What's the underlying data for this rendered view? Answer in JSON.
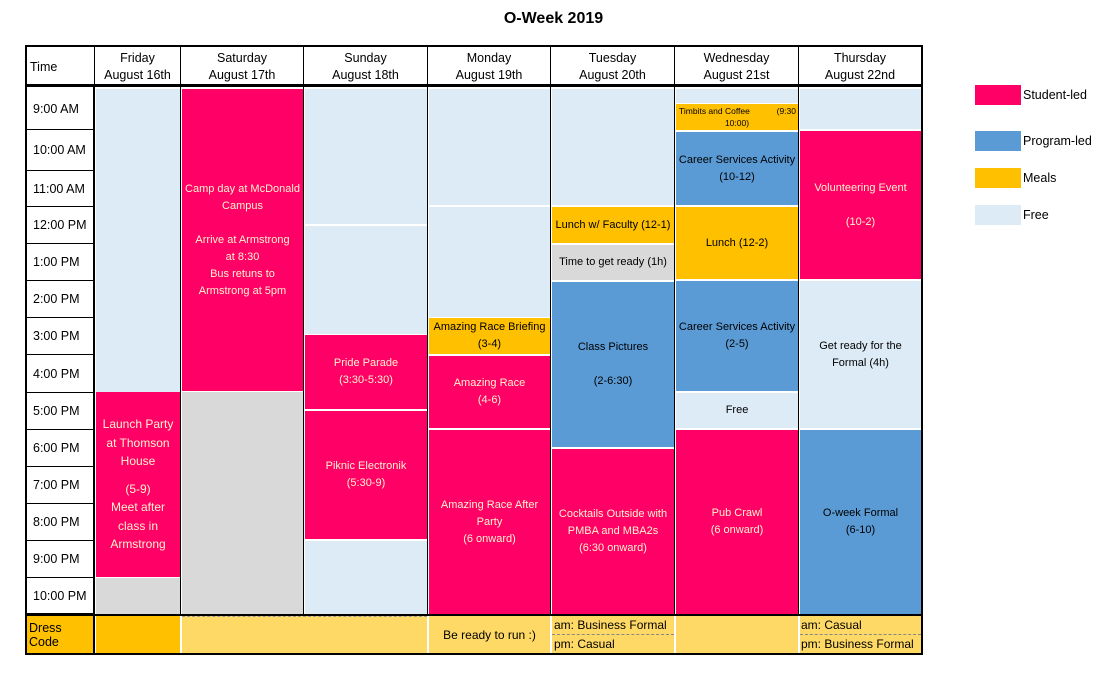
{
  "title": "O-Week 2019",
  "header": {
    "time": "Time",
    "days": [
      {
        "day": "Friday",
        "date": "August 16th"
      },
      {
        "day": "Saturday",
        "date": "August 17th"
      },
      {
        "day": "Sunday",
        "date": "August 18th"
      },
      {
        "day": "Monday",
        "date": "August 19th"
      },
      {
        "day": "Tuesday",
        "date": "August 20th"
      },
      {
        "day": "Wednesday",
        "date": "August 21st"
      },
      {
        "day": "Thursday",
        "date": "August 22nd"
      }
    ]
  },
  "times": [
    "9:00 AM",
    "10:00 AM",
    "11:00 AM",
    "12:00 PM",
    "1:00 PM",
    "2:00 PM",
    "3:00 PM",
    "4:00 PM",
    "5:00 PM",
    "6:00 PM",
    "7:00 PM",
    "8:00 PM",
    "9:00 PM",
    "10:00 PM"
  ],
  "events": {
    "sat_camp": [
      "Camp day at McDonald",
      "Campus",
      "",
      "Arrive at Armstrong",
      "at 8:30",
      "Bus retuns to",
      "Armstrong at 5pm"
    ],
    "fri_launch": [
      "Launch Party",
      "at Thomson",
      "House",
      "",
      "(5-9)",
      "Meet after",
      "class in",
      "Armstrong"
    ],
    "sun_pride": [
      "Pride Parade",
      "(3:30-5:30)"
    ],
    "sun_piknic": [
      "Piknic Electronik",
      "(5:30-9)"
    ],
    "mon_briefing": [
      "Amazing Race Briefing",
      "(3-4)"
    ],
    "mon_race": [
      "Amazing Race",
      "(4-6)"
    ],
    "mon_after": [
      "Amazing Race After",
      "Party",
      "(6 onward)"
    ],
    "tue_lunch": [
      "Lunch w/ Faculty (12-1)"
    ],
    "tue_ready": [
      "Time to get ready (1h)"
    ],
    "tue_class": [
      "Class Pictures",
      "",
      "(2-6:30)"
    ],
    "tue_cocktails": [
      "Cocktails Outside with",
      "PMBA and MBA2s",
      "(6:30 onward)"
    ],
    "wed_timbits": [
      "Timbits and Coffee",
      "(9:30",
      "10:00)"
    ],
    "wed_career1": [
      "Career Services Activity",
      "(10-12)"
    ],
    "wed_lunch": [
      "Lunch (12-2)"
    ],
    "wed_career2": [
      "Career Services Activity",
      "(2-5)"
    ],
    "wed_free": [
      "Free"
    ],
    "wed_pub": [
      "Pub Crawl",
      "(6 onward)"
    ],
    "thu_volunteer": [
      "Volunteering Event",
      "",
      "(10-2)"
    ],
    "thu_ready": [
      "Get ready for the",
      "Formal (4h)"
    ],
    "thu_formal": [
      "O-week Formal",
      "(6-10)"
    ]
  },
  "dress_code": {
    "label": "Dress Code",
    "monday": "Be ready to run :)",
    "tuesday_am": "am: Business Formal",
    "tuesday_pm": "pm: Casual",
    "thursday_am": "am: Casual",
    "thursday_pm": "pm: Business Formal"
  },
  "legend": [
    {
      "label": "Student-led",
      "color": "#ff0066"
    },
    {
      "label": "Program-led",
      "color": "#5b9bd5"
    },
    {
      "label": "Meals",
      "color": "#ffc000"
    },
    {
      "label": "Free",
      "color": "#ddebf7"
    }
  ]
}
